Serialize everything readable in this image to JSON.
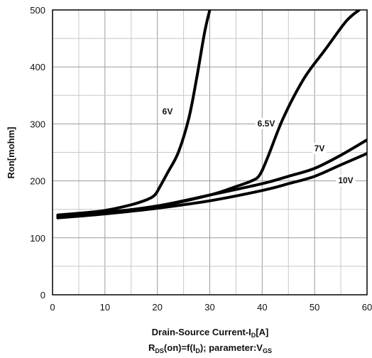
{
  "chart_data": {
    "type": "line",
    "xlabel_parts": [
      "Drain-Source Current-I",
      "D",
      "[A]"
    ],
    "ylabel": "Ron[mohm]",
    "subtitle_parts": [
      "R",
      "DS",
      "(on)=f(I",
      "D",
      ");  parameter:V",
      "GS"
    ],
    "xlim": [
      0,
      60
    ],
    "ylim": [
      0,
      500
    ],
    "x_ticks": [
      "0",
      "10",
      "20",
      "30",
      "40",
      "50",
      "60"
    ],
    "y_ticks": [
      "0",
      "100",
      "200",
      "300",
      "400",
      "500"
    ],
    "grid": true,
    "series": [
      {
        "name": "6V",
        "x": [
          1,
          5,
          10,
          15,
          18,
          19.5,
          20.5,
          22,
          24,
          26,
          27.5,
          29,
          30
        ],
        "y": [
          140,
          143,
          148,
          158,
          167,
          175,
          190,
          215,
          250,
          310,
          380,
          460,
          500
        ]
      },
      {
        "name": "6.5V",
        "x": [
          1,
          10,
          20,
          30,
          35,
          38,
          39.5,
          41,
          44,
          48,
          52,
          56,
          58.5
        ],
        "y": [
          138,
          145,
          155,
          175,
          190,
          200,
          210,
          240,
          310,
          380,
          430,
          480,
          500
        ]
      },
      {
        "name": "7V",
        "x": [
          1,
          10,
          20,
          30,
          40,
          45,
          50,
          55,
          60
        ],
        "y": [
          137,
          144,
          156,
          175,
          195,
          208,
          222,
          245,
          272
        ]
      },
      {
        "name": "10V",
        "x": [
          1,
          10,
          20,
          30,
          40,
          45,
          50,
          55,
          60
        ],
        "y": [
          135,
          142,
          152,
          165,
          183,
          195,
          208,
          228,
          248
        ]
      }
    ]
  }
}
